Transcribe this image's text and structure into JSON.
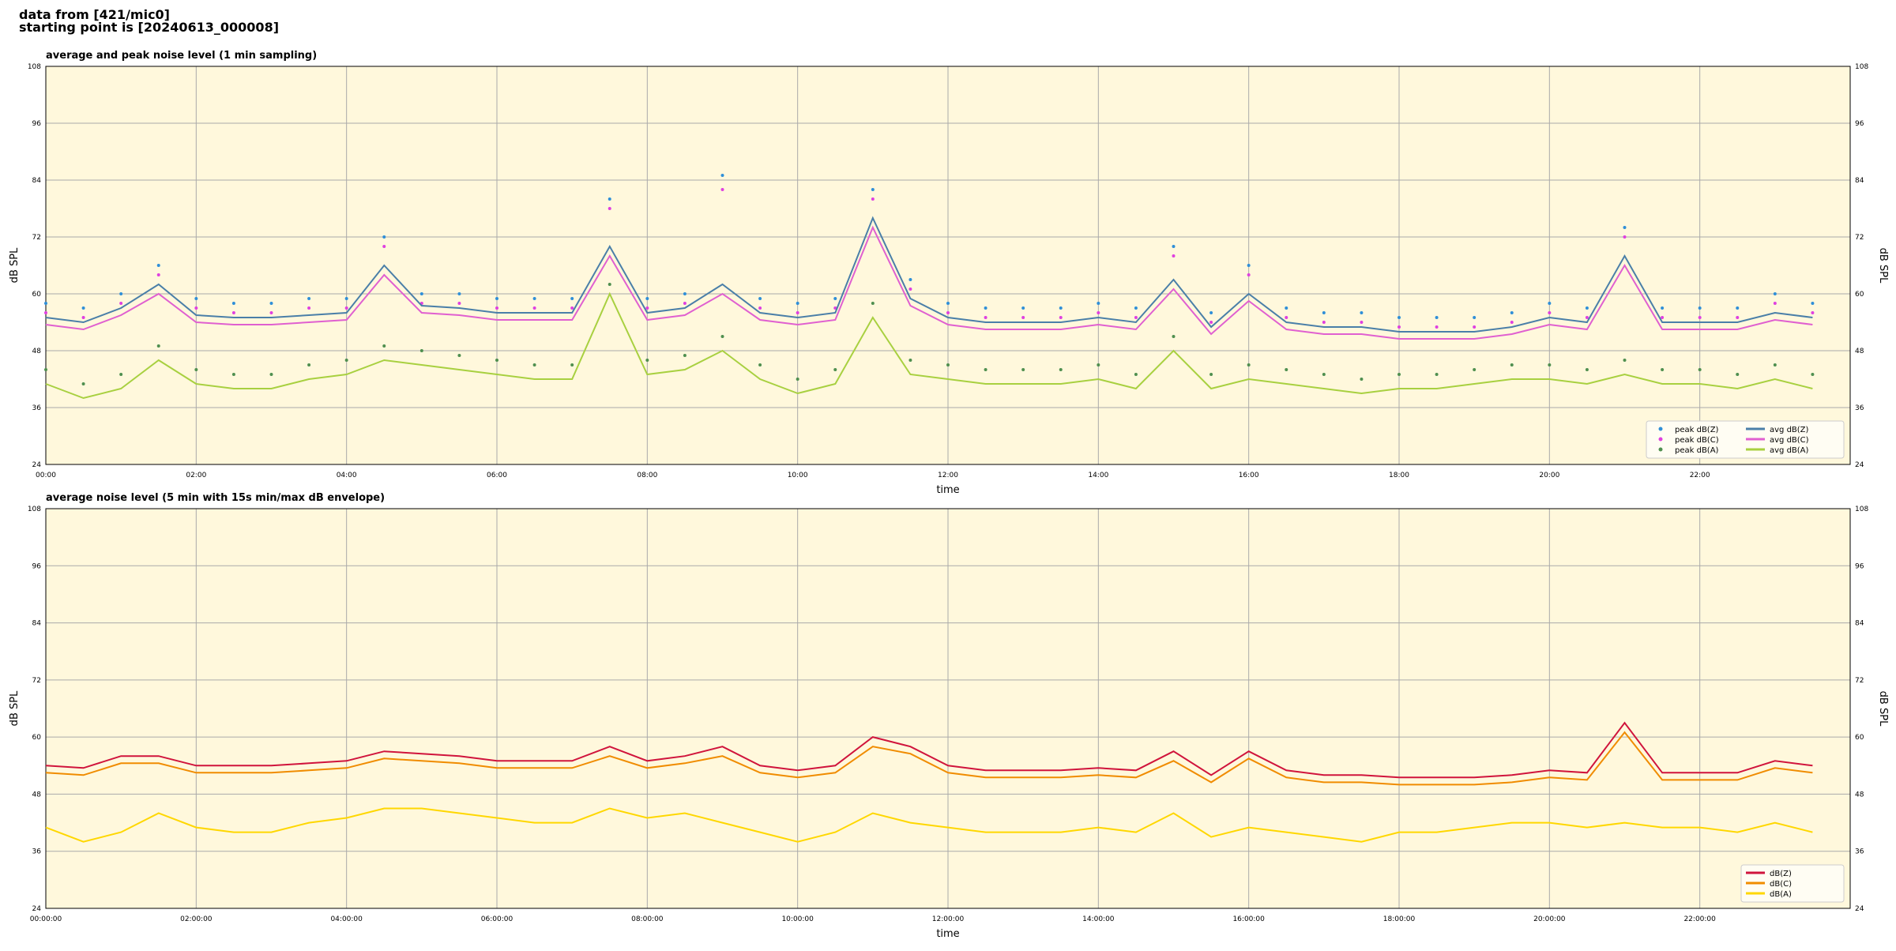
{
  "header": {
    "line1": "data from [421/mic0]",
    "line2": "starting point is [20240613_000008]"
  },
  "chart_data": [
    {
      "type": "line",
      "title": "average and peak noise level (1 min sampling)",
      "x_label": "time",
      "y_label": "dB SPL",
      "xlim": [
        0,
        24
      ],
      "ylim": [
        24,
        108
      ],
      "yticks": [
        24,
        36,
        48,
        60,
        72,
        84,
        96,
        108
      ],
      "xticks": [
        {
          "value": 0,
          "label": "00:00"
        },
        {
          "value": 2,
          "label": "02:00"
        },
        {
          "value": 4,
          "label": "04:00"
        },
        {
          "value": 6,
          "label": "06:00"
        },
        {
          "value": 8,
          "label": "08:00"
        },
        {
          "value": 10,
          "label": "10:00"
        },
        {
          "value": 12,
          "label": "12:00"
        },
        {
          "value": 14,
          "label": "14:00"
        },
        {
          "value": 16,
          "label": "16:00"
        },
        {
          "value": 18,
          "label": "18:00"
        },
        {
          "value": 20,
          "label": "20:00"
        },
        {
          "value": 22,
          "label": "22:00"
        }
      ],
      "grid": true,
      "legend": "lower right",
      "legend_columns": 2,
      "background": "#fff8dc",
      "x": [
        0,
        0.5,
        1,
        1.5,
        2,
        2.5,
        3,
        3.5,
        4,
        4.5,
        5,
        5.5,
        6,
        6.5,
        7,
        7.5,
        8,
        8.5,
        9,
        9.5,
        10,
        10.5,
        11,
        11.5,
        12,
        12.5,
        13,
        13.5,
        14,
        14.5,
        15,
        15.5,
        16,
        16.5,
        17,
        17.5,
        18,
        18.5,
        19,
        19.5,
        20,
        20.5,
        21,
        21.5,
        22,
        22.5,
        23,
        23.5
      ],
      "series": [
        {
          "name": "peak dB(Z)",
          "style": "dots",
          "color": "#2f8fd8",
          "values": [
            58,
            57,
            60,
            66,
            59,
            58,
            58,
            59,
            59,
            72,
            60,
            60,
            59,
            59,
            59,
            80,
            59,
            60,
            85,
            59,
            58,
            59,
            82,
            63,
            58,
            57,
            57,
            57,
            58,
            57,
            70,
            56,
            66,
            57,
            56,
            56,
            55,
            55,
            55,
            56,
            58,
            57,
            74,
            57,
            57,
            57,
            60,
            58
          ]
        },
        {
          "name": "peak dB(C)",
          "style": "dots",
          "color": "#e040e0",
          "values": [
            56,
            55,
            58,
            64,
            57,
            56,
            56,
            57,
            57,
            70,
            58,
            58,
            57,
            57,
            57,
            78,
            57,
            58,
            82,
            57,
            56,
            57,
            80,
            61,
            56,
            55,
            55,
            55,
            56,
            55,
            68,
            54,
            64,
            55,
            54,
            54,
            53,
            53,
            53,
            54,
            56,
            55,
            72,
            55,
            55,
            55,
            58,
            56
          ]
        },
        {
          "name": "peak dB(A)",
          "style": "dots",
          "color": "#4f8f4f",
          "values": [
            44,
            41,
            43,
            49,
            44,
            43,
            43,
            45,
            46,
            49,
            48,
            47,
            46,
            45,
            45,
            62,
            46,
            47,
            51,
            45,
            42,
            44,
            58,
            46,
            45,
            44,
            44,
            44,
            45,
            43,
            51,
            43,
            45,
            44,
            43,
            42,
            43,
            43,
            44,
            45,
            45,
            44,
            46,
            44,
            44,
            43,
            45,
            43
          ]
        },
        {
          "name": "avg dB(Z)",
          "style": "line",
          "color": "#4a7fa8",
          "values": [
            55,
            54,
            57,
            62,
            55.5,
            55,
            55,
            55.5,
            56,
            66,
            57.5,
            57,
            56,
            56,
            56,
            70,
            56,
            57,
            62,
            56,
            55,
            56,
            76,
            59,
            55,
            54,
            54,
            54,
            55,
            54,
            63,
            53,
            60,
            54,
            53,
            53,
            52,
            52,
            52,
            53,
            55,
            54,
            68,
            54,
            54,
            54,
            56,
            55
          ]
        },
        {
          "name": "avg dB(C)",
          "style": "line",
          "color": "#e060d0",
          "values": [
            53.5,
            52.5,
            55.5,
            60,
            54,
            53.5,
            53.5,
            54,
            54.5,
            64,
            56,
            55.5,
            54.5,
            54.5,
            54.5,
            68,
            54.5,
            55.5,
            60,
            54.5,
            53.5,
            54.5,
            74,
            57.5,
            53.5,
            52.5,
            52.5,
            52.5,
            53.5,
            52.5,
            61,
            51.5,
            58.5,
            52.5,
            51.5,
            51.5,
            50.5,
            50.5,
            50.5,
            51.5,
            53.5,
            52.5,
            66,
            52.5,
            52.5,
            52.5,
            54.5,
            53.5
          ]
        },
        {
          "name": "avg dB(A)",
          "style": "line",
          "color": "#a8d040",
          "values": [
            41,
            38,
            40,
            46,
            41,
            40,
            40,
            42,
            43,
            46,
            45,
            44,
            43,
            42,
            42,
            60,
            43,
            44,
            48,
            42,
            39,
            41,
            55,
            43,
            42,
            41,
            41,
            41,
            42,
            40,
            48,
            40,
            42,
            41,
            40,
            39,
            40,
            40,
            41,
            42,
            42,
            41,
            43,
            41,
            41,
            40,
            42,
            40
          ]
        }
      ]
    },
    {
      "type": "line",
      "title": "average noise level (5 min with 15s min/max dB envelope)",
      "x_label": "time",
      "y_label": "dB SPL",
      "xlim": [
        0,
        24
      ],
      "ylim": [
        24,
        108
      ],
      "yticks": [
        24,
        36,
        48,
        60,
        72,
        84,
        96,
        108
      ],
      "xticks": [
        {
          "value": 0,
          "label": "00:00:00"
        },
        {
          "value": 2,
          "label": "02:00:00"
        },
        {
          "value": 4,
          "label": "04:00:00"
        },
        {
          "value": 6,
          "label": "06:00:00"
        },
        {
          "value": 8,
          "label": "08:00:00"
        },
        {
          "value": 10,
          "label": "10:00:00"
        },
        {
          "value": 12,
          "label": "12:00:00"
        },
        {
          "value": 14,
          "label": "14:00:00"
        },
        {
          "value": 16,
          "label": "16:00:00"
        },
        {
          "value": 18,
          "label": "18:00:00"
        },
        {
          "value": 20,
          "label": "20:00:00"
        },
        {
          "value": 22,
          "label": "22:00:00"
        }
      ],
      "grid": true,
      "legend": "lower right",
      "legend_columns": 1,
      "background": "#fff8dc",
      "x": [
        0,
        0.5,
        1,
        1.5,
        2,
        2.5,
        3,
        3.5,
        4,
        4.5,
        5,
        5.5,
        6,
        6.5,
        7,
        7.5,
        8,
        8.5,
        9,
        9.5,
        10,
        10.5,
        11,
        11.5,
        12,
        12.5,
        13,
        13.5,
        14,
        14.5,
        15,
        15.5,
        16,
        16.5,
        17,
        17.5,
        18,
        18.5,
        19,
        19.5,
        20,
        20.5,
        21,
        21.5,
        22,
        22.5,
        23,
        23.5
      ],
      "series": [
        {
          "name": "dB(Z)",
          "style": "line",
          "color": "#d0143c",
          "values": [
            54,
            53.5,
            56,
            56,
            54,
            54,
            54,
            54.5,
            55,
            57,
            56.5,
            56,
            55,
            55,
            55,
            58,
            55,
            56,
            58,
            54,
            53,
            54,
            60,
            58,
            54,
            53,
            53,
            53,
            53.5,
            53,
            57,
            52,
            57,
            53,
            52,
            52,
            51.5,
            51.5,
            51.5,
            52,
            53,
            52.5,
            63,
            52.5,
            52.5,
            52.5,
            55,
            54
          ]
        },
        {
          "name": "dB(C)",
          "style": "line",
          "color": "#f08c00",
          "values": [
            52.5,
            52,
            54.5,
            54.5,
            52.5,
            52.5,
            52.5,
            53,
            53.5,
            55.5,
            55,
            54.5,
            53.5,
            53.5,
            53.5,
            56,
            53.5,
            54.5,
            56,
            52.5,
            51.5,
            52.5,
            58,
            56.5,
            52.5,
            51.5,
            51.5,
            51.5,
            52,
            51.5,
            55,
            50.5,
            55.5,
            51.5,
            50.5,
            50.5,
            50,
            50,
            50,
            50.5,
            51.5,
            51,
            61,
            51,
            51,
            51,
            53.5,
            52.5
          ]
        },
        {
          "name": "dB(A)",
          "style": "line",
          "color": "#ffd700",
          "values": [
            41,
            38,
            40,
            44,
            41,
            40,
            40,
            42,
            43,
            45,
            45,
            44,
            43,
            42,
            42,
            45,
            43,
            44,
            42,
            40,
            38,
            40,
            44,
            42,
            41,
            40,
            40,
            40,
            41,
            40,
            44,
            39,
            41,
            40,
            39,
            38,
            40,
            40,
            41,
            42,
            42,
            41,
            42,
            41,
            41,
            40,
            42,
            40
          ]
        }
      ]
    }
  ]
}
